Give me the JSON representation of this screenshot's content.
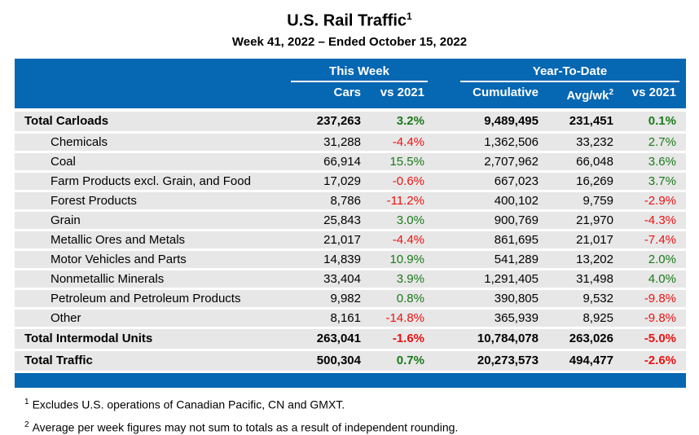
{
  "title": {
    "text": "U.S. Rail Traffic",
    "footnote_marker": "1"
  },
  "subtitle": "Week 41, 2022 – Ended October 15, 2022",
  "colors": {
    "header_blue": "#0667B2",
    "row_gray": "#E7E7E7",
    "positive_green": "#1A7A1A",
    "negative_red": "#EE1111"
  },
  "table": {
    "group_headers": [
      "This Week",
      "Year-To-Date"
    ],
    "columns": {
      "cars": "Cars",
      "vs_week": "vs 2021",
      "cumulative": "Cumulative",
      "avg_wk": "Avg/wk",
      "avg_wk_sup": "2",
      "vs_ytd": "vs 2021"
    },
    "rows": [
      {
        "label": "Total Carloads",
        "bold": true,
        "indent": false,
        "cars": "237,263",
        "vs_week": "3.2%",
        "cumulative": "9,489,495",
        "avg_wk": "231,451",
        "vs_ytd": "0.1%"
      },
      {
        "label": "Chemicals",
        "bold": false,
        "indent": true,
        "cars": "31,288",
        "vs_week": "-4.4%",
        "cumulative": "1,362,506",
        "avg_wk": "33,232",
        "vs_ytd": "2.7%"
      },
      {
        "label": "Coal",
        "bold": false,
        "indent": true,
        "cars": "66,914",
        "vs_week": "15.5%",
        "cumulative": "2,707,962",
        "avg_wk": "66,048",
        "vs_ytd": "3.6%"
      },
      {
        "label": "Farm Products excl. Grain, and Food",
        "bold": false,
        "indent": true,
        "cars": "17,029",
        "vs_week": "-0.6%",
        "cumulative": "667,023",
        "avg_wk": "16,269",
        "vs_ytd": "3.7%"
      },
      {
        "label": "Forest Products",
        "bold": false,
        "indent": true,
        "cars": "8,786",
        "vs_week": "-11.2%",
        "cumulative": "400,102",
        "avg_wk": "9,759",
        "vs_ytd": "-2.9%"
      },
      {
        "label": "Grain",
        "bold": false,
        "indent": true,
        "cars": "25,843",
        "vs_week": "3.0%",
        "cumulative": "900,769",
        "avg_wk": "21,970",
        "vs_ytd": "-4.3%"
      },
      {
        "label": "Metallic Ores and Metals",
        "bold": false,
        "indent": true,
        "cars": "21,017",
        "vs_week": "-4.4%",
        "cumulative": "861,695",
        "avg_wk": "21,017",
        "vs_ytd": "-7.4%"
      },
      {
        "label": "Motor Vehicles and Parts",
        "bold": false,
        "indent": true,
        "cars": "14,839",
        "vs_week": "10.9%",
        "cumulative": "541,289",
        "avg_wk": "13,202",
        "vs_ytd": "2.0%"
      },
      {
        "label": "Nonmetallic Minerals",
        "bold": false,
        "indent": true,
        "cars": "33,404",
        "vs_week": "3.9%",
        "cumulative": "1,291,405",
        "avg_wk": "31,498",
        "vs_ytd": "4.0%"
      },
      {
        "label": "Petroleum and Petroleum Products",
        "bold": false,
        "indent": true,
        "cars": "9,982",
        "vs_week": "0.8%",
        "cumulative": "390,805",
        "avg_wk": "9,532",
        "vs_ytd": "-9.8%"
      },
      {
        "label": "Other",
        "bold": false,
        "indent": true,
        "cars": "8,161",
        "vs_week": "-14.8%",
        "cumulative": "365,939",
        "avg_wk": "8,925",
        "vs_ytd": "-9.8%"
      },
      {
        "label": "Total Intermodal Units",
        "bold": true,
        "indent": false,
        "cars": "263,041",
        "vs_week": "-1.6%",
        "cumulative": "10,784,078",
        "avg_wk": "263,026",
        "vs_ytd": "-5.0%"
      },
      {
        "label": "Total Traffic",
        "bold": true,
        "indent": false,
        "cars": "500,304",
        "vs_week": "0.7%",
        "cumulative": "20,273,573",
        "avg_wk": "494,477",
        "vs_ytd": "-2.6%"
      }
    ]
  },
  "footnotes": [
    {
      "marker": "1",
      "text": "Excludes U.S. operations of Canadian Pacific, CN and GMXT."
    },
    {
      "marker": "2",
      "text": "Average per week figures may not sum to totals as a result of independent rounding."
    }
  ]
}
